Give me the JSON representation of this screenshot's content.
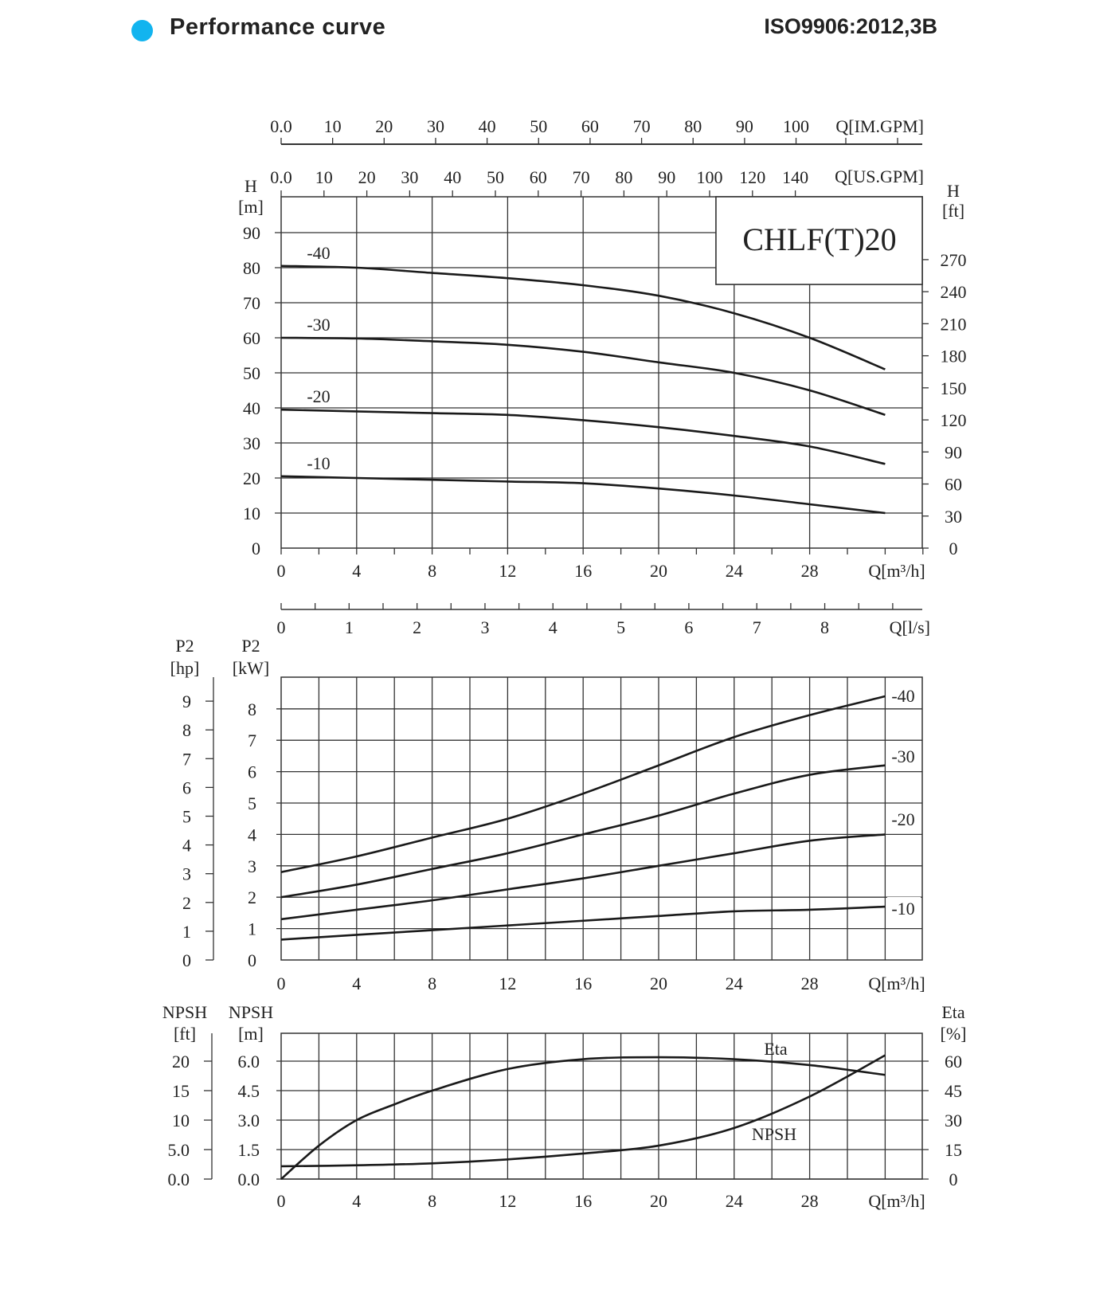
{
  "header": {
    "title": "Performance curve",
    "standard": "ISO9906:2012,3B",
    "dot_color": "#12b4ef"
  },
  "chart_data": [
    {
      "type": "line",
      "name_box": "CHLF(T)20",
      "xlabel": "Q[m³/h]",
      "x_ticks": [
        0,
        4,
        8,
        12,
        16,
        20,
        24,
        28
      ],
      "xlim": [
        0,
        34
      ],
      "ylabel_left": [
        "H",
        "[m]"
      ],
      "ylabel_right": [
        "H",
        "[ft]"
      ],
      "ylim": [
        0,
        100
      ],
      "y_ticks": [
        0,
        10,
        20,
        30,
        40,
        50,
        60,
        70,
        80,
        90
      ],
      "y2_ticks": [
        0,
        30,
        60,
        90,
        120,
        150,
        180,
        210,
        240,
        270
      ],
      "top_axis_im": {
        "label": "Q[IM.GPM]",
        "ticks": [
          "0.0",
          "10",
          "20",
          "30",
          "40",
          "50",
          "60",
          "70",
          "80",
          "90",
          "100"
        ]
      },
      "top_axis_us": {
        "label": "Q[US.GPM]",
        "ticks": [
          "0.0",
          "10",
          "20",
          "30",
          "40",
          "50",
          "60",
          "70",
          "80",
          "90",
          "100",
          "120",
          "140"
        ]
      },
      "grid": true,
      "x": [
        0,
        4,
        8,
        12,
        16,
        20,
        24,
        28,
        32
      ],
      "series": [
        {
          "name": "-40",
          "values": [
            80.5,
            80,
            78.5,
            77,
            75,
            72,
            67,
            60,
            51
          ]
        },
        {
          "name": "-30",
          "values": [
            60,
            59.8,
            59,
            58,
            56,
            53,
            50,
            45,
            38
          ]
        },
        {
          "name": "-20",
          "values": [
            39.5,
            39,
            38.5,
            38,
            36.5,
            34.5,
            32,
            29,
            24
          ]
        },
        {
          "name": "-10",
          "values": [
            20.5,
            20,
            19.5,
            19,
            18.5,
            17,
            15,
            12.5,
            10
          ]
        }
      ]
    },
    {
      "type": "line",
      "ls_axis": {
        "label": "Q[l/s]",
        "ticks": [
          0,
          1,
          2,
          3,
          4,
          5,
          6,
          7,
          8
        ]
      },
      "xlabel": "Q[m³/h]",
      "x_ticks": [
        0,
        4,
        8,
        12,
        16,
        20,
        24,
        28
      ],
      "ylabel_left": [
        "P2",
        "[kW]"
      ],
      "ylabel_far_left": [
        "P2",
        "[hp]"
      ],
      "y_ticks": [
        0,
        1,
        2,
        3,
        4,
        5,
        6,
        7,
        8
      ],
      "y_hp_ticks": [
        0,
        1,
        2,
        3,
        4,
        5,
        6,
        7,
        8,
        9
      ],
      "ylim": [
        0,
        9
      ],
      "grid": true,
      "x": [
        0,
        4,
        8,
        12,
        16,
        20,
        24,
        28,
        32
      ],
      "series": [
        {
          "name": "-40",
          "values": [
            2.8,
            3.3,
            3.9,
            4.5,
            5.3,
            6.2,
            7.1,
            7.8,
            8.4
          ]
        },
        {
          "name": "-30",
          "values": [
            2.0,
            2.4,
            2.9,
            3.4,
            4.0,
            4.6,
            5.3,
            5.9,
            6.2
          ]
        },
        {
          "name": "-20",
          "values": [
            1.3,
            1.6,
            1.9,
            2.25,
            2.6,
            3.0,
            3.4,
            3.8,
            4.0
          ]
        },
        {
          "name": "-10",
          "values": [
            0.65,
            0.8,
            0.95,
            1.1,
            1.25,
            1.4,
            1.55,
            1.6,
            1.7
          ]
        }
      ]
    },
    {
      "type": "line",
      "xlabel": "Q[m³/h]",
      "x_ticks": [
        0,
        4,
        8,
        12,
        16,
        20,
        24,
        28
      ],
      "ylabel_left": [
        "NPSH",
        "[m]"
      ],
      "ylabel_far_left": [
        "NPSH",
        "[ft]"
      ],
      "ylabel_right": [
        "Eta",
        "[%]"
      ],
      "y_ticks": [
        "0.0",
        "1.5",
        "3.0",
        "4.5",
        "6.0"
      ],
      "y_ft_ticks": [
        "0.0",
        "5.0",
        "10",
        "15",
        "20"
      ],
      "y2_ticks": [
        "0",
        "15",
        "30",
        "45",
        "60"
      ],
      "ylim": [
        0,
        7.5
      ],
      "grid": true,
      "series": [
        {
          "name": "Eta",
          "axis": "right",
          "x": [
            0,
            2,
            4,
            6,
            8,
            12,
            16,
            20,
            24,
            28,
            32
          ],
          "values": [
            0,
            17,
            30,
            38,
            45,
            56,
            61,
            62,
            61,
            58,
            53
          ]
        },
        {
          "name": "NPSH",
          "axis": "left",
          "x": [
            0,
            4,
            8,
            12,
            16,
            20,
            24,
            28,
            32
          ],
          "values": [
            0.65,
            0.7,
            0.8,
            1.0,
            1.3,
            1.7,
            2.6,
            4.2,
            6.3
          ]
        }
      ]
    }
  ]
}
